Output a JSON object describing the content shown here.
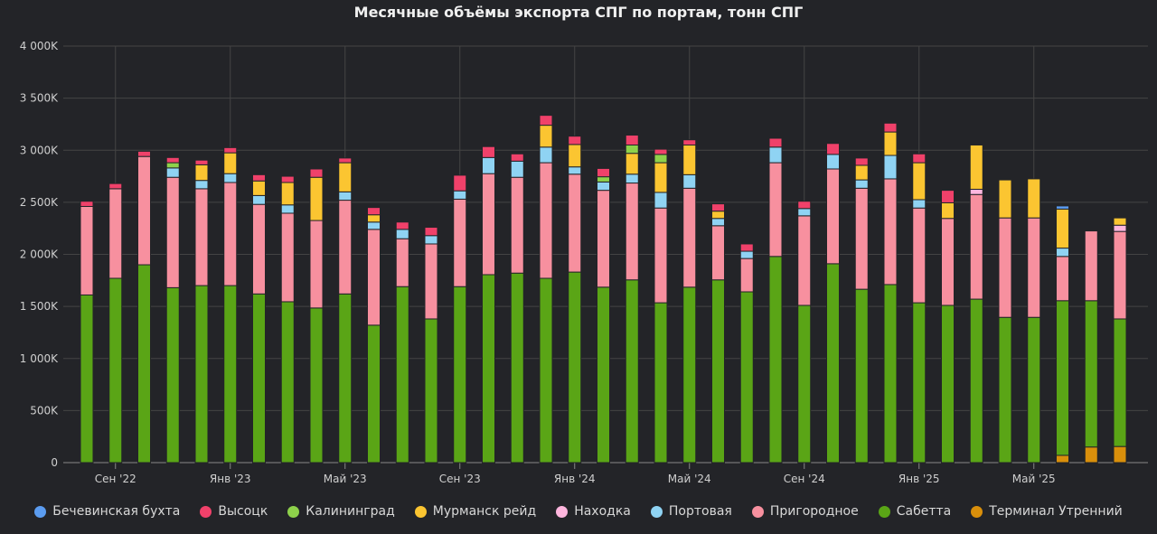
{
  "chart_data": {
    "type": "bar",
    "stacked": true,
    "title": "Месячные объёмы экспорта СПГ по портам, тонн СПГ",
    "xlabel": "",
    "ylabel": "",
    "ylim": [
      0,
      4000000
    ],
    "yticks": [
      0,
      500000,
      1000000,
      1500000,
      2000000,
      2500000,
      3000000,
      3500000,
      4000000
    ],
    "ytick_labels": [
      "0",
      "500K",
      "1 000K",
      "1 500K",
      "2 000K",
      "2 500K",
      "3 000K",
      "3 500K",
      "4 000K"
    ],
    "categories": [
      "2022-08",
      "2022-09",
      "2022-10",
      "2022-11",
      "2022-12",
      "2023-01",
      "2023-02",
      "2023-03",
      "2023-04",
      "2023-05",
      "2023-06",
      "2023-07",
      "2023-08",
      "2023-09",
      "2023-10",
      "2023-11",
      "2023-12",
      "2024-01",
      "2024-02",
      "2024-03",
      "2024-04",
      "2024-05",
      "2024-06",
      "2024-07",
      "2024-08",
      "2024-09",
      "2024-10",
      "2024-11",
      "2024-12",
      "2025-01",
      "2025-02",
      "2025-03",
      "2025-04",
      "2025-05",
      "2025-06",
      "2025-07",
      "2025-08"
    ],
    "xticks": [
      {
        "category": "2022-09",
        "label": "Сен '22"
      },
      {
        "category": "2023-01",
        "label": "Янв '23"
      },
      {
        "category": "2023-05",
        "label": "Май '23"
      },
      {
        "category": "2023-09",
        "label": "Сен '23"
      },
      {
        "category": "2024-01",
        "label": "Янв '24"
      },
      {
        "category": "2024-05",
        "label": "Май '24"
      },
      {
        "category": "2024-09",
        "label": "Сен '24"
      },
      {
        "category": "2025-01",
        "label": "Янв '25"
      },
      {
        "category": "2025-05",
        "label": "Май '25"
      }
    ],
    "grid": true,
    "legend_position": "bottom",
    "series": [
      {
        "name": "Бечевинская бухта",
        "color": "#5b9cf0",
        "values": [
          0,
          0,
          0,
          0,
          0,
          0,
          0,
          0,
          0,
          0,
          0,
          0,
          0,
          0,
          0,
          0,
          0,
          0,
          0,
          0,
          0,
          0,
          0,
          0,
          0,
          0,
          0,
          0,
          0,
          0,
          0,
          0,
          0,
          0,
          30000,
          0,
          0
        ]
      },
      {
        "name": "Высоцк",
        "color": "#f0416a",
        "values": [
          50000,
          50000,
          50000,
          50000,
          45000,
          50000,
          60000,
          60000,
          80000,
          45000,
          70000,
          70000,
          80000,
          150000,
          105000,
          70000,
          95000,
          80000,
          80000,
          95000,
          50000,
          50000,
          70000,
          70000,
          85000,
          70000,
          105000,
          70000,
          85000,
          85000,
          120000,
          0,
          0,
          0,
          0,
          0,
          0
        ]
      },
      {
        "name": "Калининград",
        "color": "#8ed14b",
        "values": [
          0,
          0,
          0,
          50000,
          0,
          0,
          0,
          0,
          0,
          0,
          0,
          0,
          0,
          0,
          0,
          0,
          0,
          0,
          50000,
          80000,
          80000,
          0,
          0,
          0,
          0,
          0,
          0,
          0,
          0,
          0,
          0,
          0,
          0,
          0,
          0,
          0,
          0
        ]
      },
      {
        "name": "Мурманск рейд",
        "color": "#fbc531",
        "values": [
          0,
          0,
          0,
          0,
          150000,
          200000,
          140000,
          215000,
          415000,
          280000,
          70000,
          0,
          0,
          0,
          0,
          0,
          210000,
          215000,
          0,
          200000,
          285000,
          285000,
          70000,
          0,
          0,
          0,
          0,
          140000,
          225000,
          355000,
          150000,
          425000,
          365000,
          375000,
          375000,
          0,
          70000
        ]
      },
      {
        "name": "Находка",
        "color": "#ffb6de",
        "values": [
          0,
          0,
          0,
          0,
          0,
          0,
          0,
          0,
          0,
          0,
          0,
          0,
          0,
          0,
          0,
          0,
          0,
          0,
          0,
          0,
          0,
          0,
          0,
          0,
          0,
          0,
          0,
          0,
          0,
          0,
          0,
          50000,
          0,
          0,
          0,
          0,
          60000
        ]
      },
      {
        "name": "Портовая",
        "color": "#8fd3f3",
        "values": [
          0,
          0,
          0,
          90000,
          80000,
          85000,
          85000,
          80000,
          0,
          80000,
          70000,
          90000,
          80000,
          80000,
          155000,
          155000,
          150000,
          70000,
          80000,
          85000,
          150000,
          130000,
          70000,
          70000,
          150000,
          70000,
          140000,
          80000,
          225000,
          80000,
          0,
          0,
          0,
          0,
          80000,
          0,
          0
        ]
      },
      {
        "name": "Пригородное",
        "color": "#f7909f",
        "values": [
          850000,
          860000,
          1040000,
          1060000,
          930000,
          990000,
          860000,
          850000,
          840000,
          900000,
          920000,
          460000,
          720000,
          840000,
          970000,
          920000,
          1110000,
          940000,
          930000,
          930000,
          910000,
          950000,
          520000,
          320000,
          900000,
          860000,
          910000,
          970000,
          1015000,
          910000,
          835000,
          1005000,
          955000,
          955000,
          425000,
          670000,
          840000
        ]
      },
      {
        "name": "Сабетта",
        "color": "#5aa516",
        "values": [
          1610000,
          1770000,
          1900000,
          1680000,
          1700000,
          1700000,
          1620000,
          1545000,
          1485000,
          1620000,
          1320000,
          1690000,
          1380000,
          1690000,
          1805000,
          1820000,
          1770000,
          1830000,
          1685000,
          1755000,
          1535000,
          1685000,
          1755000,
          1640000,
          1980000,
          1510000,
          1910000,
          1665000,
          1710000,
          1535000,
          1510000,
          1570000,
          1395000,
          1395000,
          1485000,
          1405000,
          1225000
        ]
      },
      {
        "name": "Терминал Утренний",
        "color": "#d98f0b",
        "values": [
          0,
          0,
          0,
          0,
          0,
          0,
          0,
          0,
          0,
          0,
          0,
          0,
          0,
          0,
          0,
          0,
          0,
          0,
          0,
          0,
          0,
          0,
          0,
          0,
          0,
          0,
          0,
          0,
          0,
          0,
          0,
          0,
          0,
          0,
          70000,
          150000,
          155000
        ]
      }
    ],
    "stack_order_bottom_to_top": [
      "Терминал Утренний",
      "Сабетта",
      "Пригородное",
      "Находка",
      "Портовая",
      "Мурманск рейд",
      "Калининград",
      "Высоцк",
      "Бечевинская бухта"
    ]
  }
}
